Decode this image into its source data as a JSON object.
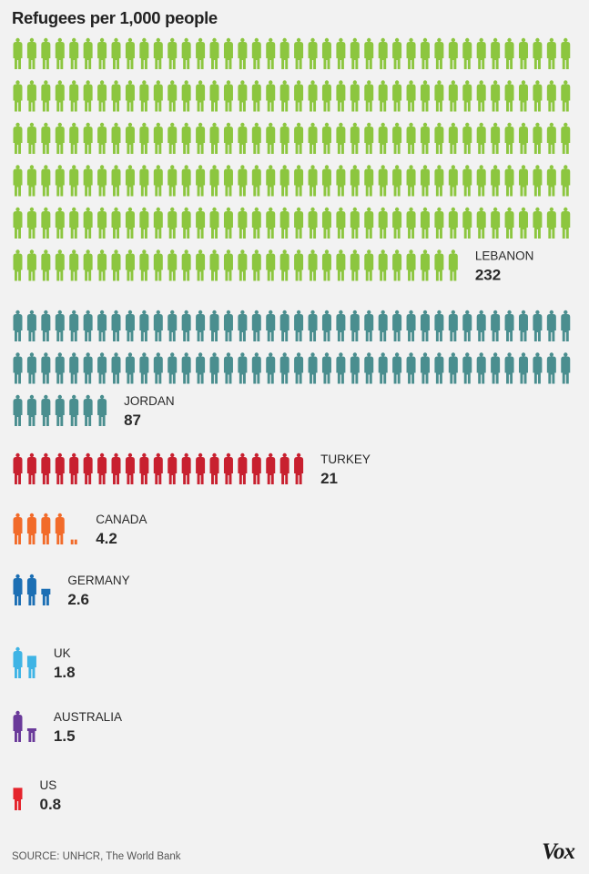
{
  "title": "Refugees per 1,000 people",
  "source": "SOURCE: UNHCR, The World Bank",
  "logo_text": "Vox",
  "icon": "person-icon",
  "chart_data": {
    "type": "pictogram",
    "title": "Refugees per 1,000 people",
    "unit_per_icon": 1,
    "series": [
      {
        "name": "LEBANON",
        "value": 232,
        "value_label": "232",
        "color": "#8cc63f"
      },
      {
        "name": "JORDAN",
        "value": 87,
        "value_label": "87",
        "color": "#4a8e8f"
      },
      {
        "name": "TURKEY",
        "value": 21,
        "value_label": "21",
        "color": "#c8202f"
      },
      {
        "name": "CANADA",
        "value": 4.2,
        "value_label": "4.2",
        "color": "#f26b2a"
      },
      {
        "name": "GERMANY",
        "value": 2.6,
        "value_label": "2.6",
        "color": "#1c6fb4"
      },
      {
        "name": "UK",
        "value": 1.8,
        "value_label": "1.8",
        "color": "#3fb4e5"
      },
      {
        "name": "AUSTRALIA",
        "value": 1.5,
        "value_label": "1.5",
        "color": "#6a3a9a"
      },
      {
        "name": "US",
        "value": 0.8,
        "value_label": "0.8",
        "color": "#e5242c"
      }
    ]
  }
}
